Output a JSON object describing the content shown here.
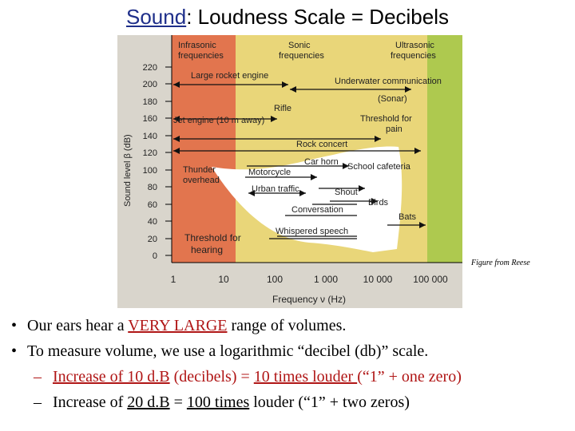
{
  "title": {
    "link": "Sound",
    "rest": ":  Loudness Scale = Decibels"
  },
  "figure": {
    "regions": {
      "infrasonic": "Infrasonic\nfrequencies",
      "sonic": "Sonic\nfrequencies",
      "ultrasonic": "Ultrasonic\nfrequencies"
    },
    "y_axis_label": "Sound level β (dB)",
    "x_axis_label": "Frequency ν  (Hz)",
    "y_ticks": [
      "220",
      "200",
      "180",
      "160",
      "140",
      "120",
      "100",
      "80",
      "60",
      "40",
      "20",
      "0"
    ],
    "x_ticks": [
      "1",
      "10",
      "100",
      "1 000",
      "10 000",
      "100 000"
    ],
    "labels": {
      "large_rocket": "Large rocket engine",
      "underwater": "Underwater communication",
      "sonar": "(Sonar)",
      "rifle": "Rifle",
      "jet": "Jet engine (10 m away)",
      "pain": "Threshold for\npain",
      "rock": "Rock concert",
      "car_horn": "Car horn",
      "thunder": "Thunder\noverhead",
      "motorcycle": "Motorcycle",
      "school": "School cafeteria",
      "urban": "Urban traffic",
      "shout": "Shout",
      "birds": "Birds",
      "conversation": "Conversation",
      "bats": "Bats",
      "whisper": "Whispered speech",
      "hearing": "Threshold for\nhearing"
    },
    "colors": {
      "infrasonic": "#e2754e",
      "sonic": "#e9d679",
      "ultrasonic": "#aec94f",
      "hearing_region": "#ffffff"
    }
  },
  "caption": "Figure from Reese",
  "bullets": [
    {
      "parts": [
        {
          "text": "Our ears hear a "
        },
        {
          "text": "VERY LARGE",
          "red": true,
          "u": true
        },
        {
          "text": " range of volumes."
        }
      ]
    },
    {
      "parts": [
        {
          "text": "To measure volume, we use a logarithmic “decibel (db)” scale."
        }
      ]
    }
  ],
  "sub_bullets": [
    {
      "parts": [
        {
          "text": "Increase of 10 d.B",
          "red": true,
          "u": true
        },
        {
          "text": " (decibels) = ",
          "red": true
        },
        {
          "text": "10 times louder ",
          "red": true,
          "u": true
        },
        {
          "text": "(“1” + one zero)",
          "red": true
        }
      ]
    },
    {
      "parts": [
        {
          "text": "Increase of "
        },
        {
          "text": "20 d.B",
          "u": true
        },
        {
          "text": " = "
        },
        {
          "text": "100 times",
          "u": true
        },
        {
          "text": " louder  (“1” + two zeros)"
        }
      ]
    }
  ]
}
